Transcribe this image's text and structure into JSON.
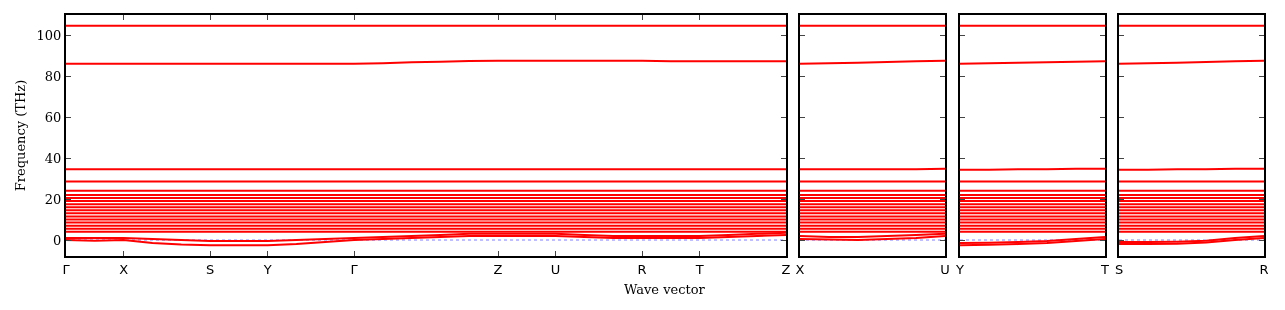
{
  "chart_data": [
    {
      "type": "line",
      "xlabel": "Wave vector",
      "ylabel": "Frequency (THz)",
      "categories": [
        "Γ",
        null,
        "X",
        null,
        null,
        "S",
        null,
        "Y",
        null,
        null,
        "Γ",
        null,
        null,
        null,
        null,
        "Z",
        null,
        "U",
        null,
        null,
        "R",
        null,
        "T",
        null,
        null,
        "Z"
      ],
      "ylim": [
        -7.8,
        109.8
      ],
      "yticks": [
        0,
        20,
        40,
        60,
        80,
        100
      ],
      "grid": false,
      "line_style": "solid",
      "marker": "none",
      "ref_lines": [
        {
          "axis": "y",
          "value": 0,
          "color": "#8080ff",
          "line_style": "dotted"
        }
      ],
      "series": [
        {
          "color": "#ff0000",
          "values": [
            104.5,
            104.5,
            104.5,
            104.5,
            104.5,
            104.5,
            104.5,
            104.5,
            104.5,
            104.5,
            104.5,
            104.5,
            104.5,
            104.5,
            104.5,
            104.5,
            104.5,
            104.5,
            104.5,
            104.5,
            104.5,
            104.5,
            104.5,
            104.5,
            104.5,
            104.5
          ]
        },
        {
          "color": "#ff0000",
          "values": [
            86,
            86,
            86,
            86,
            86,
            86,
            86,
            86,
            86,
            86,
            86,
            86.3,
            86.7,
            87,
            87.3,
            87.5,
            87.5,
            87.5,
            87.5,
            87.5,
            87.5,
            87.2,
            87.2,
            87.2,
            87.2,
            87.2
          ]
        },
        {
          "color": "#ff0000",
          "values": [
            34.5,
            34.5,
            34.5,
            34.5,
            34.5,
            34.5,
            34.5,
            34.5,
            34.5,
            34.5,
            34.5,
            34.5,
            34.5,
            34.5,
            34.5,
            34.5,
            34.5,
            34.5,
            34.5,
            34.5,
            34.5,
            34.5,
            34.5,
            34.5,
            34.5,
            34.5
          ]
        },
        {
          "color": "#ff0000",
          "values": [
            28.5,
            28.5,
            28.5,
            28.5,
            28.5,
            28.5,
            28.5,
            28.5,
            28.5,
            28.5,
            28.5,
            28.5,
            28.5,
            28.5,
            28.5,
            28.5,
            28.5,
            28.5,
            28.5,
            28.5,
            28.5,
            28.5,
            28.5,
            28.5,
            28.5,
            28.5
          ]
        },
        {
          "color": "#ff0000",
          "values": [
            24,
            24,
            24,
            24,
            24,
            24,
            24,
            24,
            24,
            24,
            24,
            24,
            24,
            24,
            24,
            24,
            24,
            24,
            24,
            24,
            24,
            24,
            24,
            24,
            24,
            24
          ]
        },
        {
          "color": "#ff0000",
          "values": [
            22,
            22,
            22,
            22,
            22,
            22,
            22,
            22,
            22,
            22,
            22,
            22,
            22,
            22,
            22,
            22,
            22,
            22,
            22,
            22,
            22,
            22,
            22,
            22,
            22,
            22
          ]
        },
        {
          "color": "#ff0000",
          "values": [
            20.5,
            20.5,
            20.5,
            20.5,
            20.5,
            20.5,
            20.5,
            20.5,
            20.5,
            20.5,
            20.5,
            20.5,
            20.5,
            20.5,
            20.5,
            20.5,
            20.5,
            20.5,
            20.5,
            20.5,
            20.5,
            20.5,
            20.5,
            20.5,
            20.5,
            20.5
          ]
        },
        {
          "color": "#ff0000",
          "values": [
            19,
            19,
            19,
            19,
            19,
            19,
            19,
            19,
            19,
            19,
            19,
            19,
            19,
            19,
            19,
            19,
            19,
            19,
            19,
            19,
            19,
            19,
            19,
            19,
            19,
            19
          ]
        },
        {
          "color": "#ff0000",
          "values": [
            17.5,
            17.5,
            17.5,
            17.5,
            17.5,
            17.5,
            17.5,
            17.5,
            17.5,
            17.5,
            17.5,
            17.5,
            17.5,
            17.5,
            17.5,
            17.5,
            17.5,
            17.5,
            17.5,
            17.5,
            17.5,
            17.5,
            17.5,
            17.5,
            17.5,
            17.5
          ]
        },
        {
          "color": "#ff0000",
          "values": [
            16,
            16,
            16,
            16,
            16,
            16,
            16,
            16,
            16,
            16,
            16,
            16,
            16,
            16,
            16,
            16,
            16,
            16,
            16,
            16,
            16,
            16,
            16,
            16,
            16,
            16
          ]
        },
        {
          "color": "#ff0000",
          "values": [
            14.5,
            14.5,
            14.5,
            14.5,
            14.5,
            14.5,
            14.5,
            14.5,
            14.5,
            14.5,
            14.5,
            14.5,
            14.5,
            14.5,
            14.5,
            14.5,
            14.5,
            14.5,
            14.5,
            14.5,
            14.5,
            14.5,
            14.5,
            14.5,
            14.5,
            14.5
          ]
        },
        {
          "color": "#ff0000",
          "values": [
            13,
            13,
            13,
            13,
            13,
            13,
            13,
            13,
            13,
            13,
            13,
            13,
            13,
            13,
            13,
            13,
            13,
            13,
            13,
            13,
            13,
            13,
            13,
            13,
            13,
            13
          ]
        },
        {
          "color": "#ff0000",
          "values": [
            11.5,
            11.5,
            11.5,
            11.5,
            11.5,
            11.5,
            11.5,
            11.5,
            11.5,
            11.5,
            11.5,
            11.5,
            11.5,
            11.5,
            11.5,
            11.5,
            11.5,
            11.5,
            11.5,
            11.5,
            11.5,
            11.5,
            11.5,
            11.5,
            11.5,
            11.5
          ]
        },
        {
          "color": "#ff0000",
          "values": [
            10,
            10,
            10,
            10,
            10,
            10,
            10,
            10,
            10,
            10,
            10,
            10,
            10,
            10,
            10,
            10,
            10,
            10,
            10,
            10,
            10,
            10,
            10,
            10,
            10,
            10
          ]
        },
        {
          "color": "#ff0000",
          "values": [
            8.5,
            8.5,
            8.5,
            8.5,
            8.5,
            8.5,
            8.5,
            8.5,
            8.5,
            8.5,
            8.5,
            8.5,
            8.5,
            8.5,
            8.5,
            8.5,
            8.5,
            8.5,
            8.5,
            8.5,
            8.5,
            8.5,
            8.5,
            8.5,
            8.5,
            8.5
          ]
        },
        {
          "color": "#ff0000",
          "values": [
            7,
            7,
            7,
            7,
            7,
            7,
            7,
            7,
            7,
            7,
            7,
            7,
            7,
            7,
            7,
            7,
            7,
            7,
            7,
            7,
            7,
            7,
            7,
            7,
            7,
            7
          ]
        },
        {
          "color": "#ff0000",
          "values": [
            5.5,
            5.5,
            5.5,
            5.5,
            5.5,
            5.5,
            5.5,
            5.5,
            5.5,
            5.5,
            5.5,
            5.5,
            5.5,
            5.5,
            5.5,
            5.5,
            5.5,
            5.5,
            5.5,
            5.5,
            5.5,
            5.5,
            5.5,
            5.5,
            5.5,
            5.5
          ]
        },
        {
          "color": "#ff0000",
          "values": [
            4,
            4,
            4,
            4,
            4,
            4,
            4,
            4,
            4,
            4,
            4,
            4,
            4,
            4,
            4,
            4,
            4,
            4,
            4,
            4,
            4,
            4,
            4,
            4,
            4,
            4
          ]
        },
        {
          "color": "#ff0000",
          "values": [
            1,
            1,
            1,
            0.5,
            0,
            -0.5,
            -0.5,
            -0.5,
            0,
            0.5,
            1,
            1.5,
            2,
            2.5,
            3,
            3,
            3,
            3,
            2.5,
            2,
            2,
            2,
            2,
            2.5,
            3,
            3.5
          ]
        },
        {
          "color": "#ff0000",
          "values": [
            0,
            -0.3,
            0,
            -1.5,
            -2.2,
            -2.5,
            -2.5,
            -2.5,
            -2,
            -1,
            0,
            0.5,
            1,
            1.5,
            2,
            2,
            2,
            2,
            1.5,
            1,
            1,
            1,
            1,
            1.5,
            2,
            2.5
          ]
        }
      ]
    },
    {
      "type": "line",
      "categories": [
        "X",
        null,
        null,
        null,
        null,
        "U"
      ],
      "ylim": [
        -7.8,
        109.8
      ],
      "yticks": [
        0,
        20,
        40,
        60,
        80,
        100
      ],
      "tick_labels": "x",
      "grid": false,
      "line_style": "solid",
      "marker": "none",
      "ref_lines": [
        {
          "axis": "y",
          "value": 0,
          "color": "#8080ff",
          "line_style": "dotted"
        }
      ],
      "series": [
        {
          "color": "#ff0000",
          "values": [
            104.5,
            104.5,
            104.5,
            104.5,
            104.5,
            104.5
          ]
        },
        {
          "color": "#ff0000",
          "values": [
            86,
            86.2,
            86.5,
            86.9,
            87.2,
            87.5
          ]
        },
        {
          "color": "#ff0000",
          "values": [
            34.5,
            34.5,
            34.5,
            34.5,
            34.5,
            34.8
          ]
        },
        {
          "color": "#ff0000",
          "values": [
            28.5,
            28.5,
            28.5,
            28.5,
            28.5,
            28.5
          ]
        },
        {
          "color": "#ff0000",
          "values": [
            24,
            24,
            24,
            24,
            24,
            24
          ]
        },
        {
          "color": "#ff0000",
          "values": [
            22,
            22,
            22,
            22,
            22,
            22
          ]
        },
        {
          "color": "#ff0000",
          "values": [
            20.5,
            20.5,
            20.5,
            20.5,
            20.5,
            20.5
          ]
        },
        {
          "color": "#ff0000",
          "values": [
            19,
            19,
            19,
            19,
            19,
            19
          ]
        },
        {
          "color": "#ff0000",
          "values": [
            17.5,
            17.5,
            17.5,
            17.5,
            17.5,
            17.5
          ]
        },
        {
          "color": "#ff0000",
          "values": [
            16,
            16,
            16,
            16,
            16,
            16
          ]
        },
        {
          "color": "#ff0000",
          "values": [
            14.5,
            14.5,
            14.5,
            14.5,
            14.5,
            14.5
          ]
        },
        {
          "color": "#ff0000",
          "values": [
            13,
            13,
            13,
            13,
            13,
            13
          ]
        },
        {
          "color": "#ff0000",
          "values": [
            11.5,
            11.5,
            11.5,
            11.5,
            11.5,
            11.5
          ]
        },
        {
          "color": "#ff0000",
          "values": [
            10,
            10,
            10,
            10,
            10,
            10
          ]
        },
        {
          "color": "#ff0000",
          "values": [
            8.5,
            8.5,
            8.5,
            8.5,
            8.5,
            8.5
          ]
        },
        {
          "color": "#ff0000",
          "values": [
            7,
            7,
            7,
            7,
            7,
            7
          ]
        },
        {
          "color": "#ff0000",
          "values": [
            5.5,
            5.5,
            5.5,
            5.5,
            5.5,
            5.5
          ]
        },
        {
          "color": "#ff0000",
          "values": [
            4,
            4,
            4,
            4,
            4,
            4
          ]
        },
        {
          "color": "#ff0000",
          "values": [
            2,
            1.5,
            1.5,
            2,
            2.5,
            3
          ]
        },
        {
          "color": "#ff0000",
          "values": [
            0.5,
            0.2,
            0,
            0.5,
            1,
            2
          ]
        }
      ]
    },
    {
      "type": "line",
      "categories": [
        "Y",
        null,
        null,
        null,
        null,
        "T"
      ],
      "ylim": [
        -7.8,
        109.8
      ],
      "yticks": [
        0,
        20,
        40,
        60,
        80,
        100
      ],
      "tick_labels": "x",
      "grid": false,
      "line_style": "solid",
      "marker": "none",
      "ref_lines": [
        {
          "axis": "y",
          "value": 0,
          "color": "#8080ff",
          "line_style": "dotted"
        }
      ],
      "series": [
        {
          "color": "#ff0000",
          "values": [
            104.5,
            104.5,
            104.5,
            104.5,
            104.5,
            104.5
          ]
        },
        {
          "color": "#ff0000",
          "values": [
            86,
            86.2,
            86.5,
            86.8,
            87,
            87.2
          ]
        },
        {
          "color": "#ff0000",
          "values": [
            34.3,
            34.3,
            34.5,
            34.5,
            34.8,
            34.8
          ]
        },
        {
          "color": "#ff0000",
          "values": [
            28.5,
            28.5,
            28.5,
            28.5,
            28.5,
            28.5
          ]
        },
        {
          "color": "#ff0000",
          "values": [
            24,
            24,
            24,
            24,
            24,
            24
          ]
        },
        {
          "color": "#ff0000",
          "values": [
            22,
            22,
            22,
            22,
            22,
            22
          ]
        },
        {
          "color": "#ff0000",
          "values": [
            20.5,
            20.5,
            20.5,
            20.5,
            20.5,
            20.5
          ]
        },
        {
          "color": "#ff0000",
          "values": [
            19,
            19,
            19,
            19,
            19,
            19
          ]
        },
        {
          "color": "#ff0000",
          "values": [
            17.5,
            17.5,
            17.5,
            17.5,
            17.5,
            17.5
          ]
        },
        {
          "color": "#ff0000",
          "values": [
            16,
            16,
            16,
            16,
            16,
            16
          ]
        },
        {
          "color": "#ff0000",
          "values": [
            14.5,
            14.5,
            14.5,
            14.5,
            14.5,
            14.5
          ]
        },
        {
          "color": "#ff0000",
          "values": [
            13,
            13,
            13,
            13,
            13,
            13
          ]
        },
        {
          "color": "#ff0000",
          "values": [
            11.5,
            11.5,
            11.5,
            11.5,
            11.5,
            11.5
          ]
        },
        {
          "color": "#ff0000",
          "values": [
            10,
            10,
            10,
            10,
            10,
            10
          ]
        },
        {
          "color": "#ff0000",
          "values": [
            8.5,
            8.5,
            8.5,
            8.5,
            8.5,
            8.5
          ]
        },
        {
          "color": "#ff0000",
          "values": [
            7,
            7,
            7,
            7,
            7,
            7
          ]
        },
        {
          "color": "#ff0000",
          "values": [
            5.5,
            5.5,
            5.5,
            5.5,
            5.5,
            5.5
          ]
        },
        {
          "color": "#ff0000",
          "values": [
            4,
            4,
            4,
            4,
            4,
            4
          ]
        },
        {
          "color": "#ff0000",
          "values": [
            -1.5,
            -1.3,
            -1,
            -0.5,
            0.5,
            1.5
          ]
        },
        {
          "color": "#ff0000",
          "values": [
            -2.5,
            -2.3,
            -2,
            -1.5,
            -0.5,
            0.5
          ]
        }
      ]
    },
    {
      "type": "line",
      "categories": [
        "S",
        null,
        null,
        null,
        null,
        "R"
      ],
      "ylim": [
        -7.8,
        109.8
      ],
      "yticks": [
        0,
        20,
        40,
        60,
        80,
        100
      ],
      "tick_labels": "x",
      "grid": false,
      "line_style": "solid",
      "marker": "none",
      "ref_lines": [
        {
          "axis": "y",
          "value": 0,
          "color": "#8080ff",
          "line_style": "dotted"
        }
      ],
      "series": [
        {
          "color": "#ff0000",
          "values": [
            104.5,
            104.5,
            104.5,
            104.5,
            104.5,
            104.5
          ]
        },
        {
          "color": "#ff0000",
          "values": [
            86,
            86.2,
            86.5,
            86.9,
            87.2,
            87.5
          ]
        },
        {
          "color": "#ff0000",
          "values": [
            34.3,
            34.3,
            34.5,
            34.5,
            34.8,
            34.8
          ]
        },
        {
          "color": "#ff0000",
          "values": [
            28.5,
            28.5,
            28.5,
            28.5,
            28.5,
            28.5
          ]
        },
        {
          "color": "#ff0000",
          "values": [
            24,
            24,
            24,
            24,
            24,
            24
          ]
        },
        {
          "color": "#ff0000",
          "values": [
            22,
            22,
            22,
            22,
            22,
            22
          ]
        },
        {
          "color": "#ff0000",
          "values": [
            20.5,
            20.5,
            20.5,
            20.5,
            20.5,
            20.5
          ]
        },
        {
          "color": "#ff0000",
          "values": [
            19,
            19,
            19,
            19,
            19,
            19
          ]
        },
        {
          "color": "#ff0000",
          "values": [
            17.5,
            17.5,
            17.5,
            17.5,
            17.5,
            17.5
          ]
        },
        {
          "color": "#ff0000",
          "values": [
            16,
            16,
            16,
            16,
            16,
            16
          ]
        },
        {
          "color": "#ff0000",
          "values": [
            14.5,
            14.5,
            14.5,
            14.5,
            14.5,
            14.5
          ]
        },
        {
          "color": "#ff0000",
          "values": [
            13,
            13,
            13,
            13,
            13,
            13
          ]
        },
        {
          "color": "#ff0000",
          "values": [
            11.5,
            11.5,
            11.5,
            11.5,
            11.5,
            11.5
          ]
        },
        {
          "color": "#ff0000",
          "values": [
            10,
            10,
            10,
            10,
            10,
            10
          ]
        },
        {
          "color": "#ff0000",
          "values": [
            8.5,
            8.5,
            8.5,
            8.5,
            8.5,
            8.5
          ]
        },
        {
          "color": "#ff0000",
          "values": [
            7,
            7,
            7,
            7,
            7,
            7
          ]
        },
        {
          "color": "#ff0000",
          "values": [
            5.5,
            5.5,
            5.5,
            5.5,
            5.5,
            5.5
          ]
        },
        {
          "color": "#ff0000",
          "values": [
            4,
            4,
            4,
            4,
            4,
            4
          ]
        },
        {
          "color": "#ff0000",
          "values": [
            -1,
            -1,
            -0.8,
            -0.3,
            1,
            2
          ]
        },
        {
          "color": "#ff0000",
          "values": [
            -2,
            -2,
            -1.8,
            -1.2,
            0,
            1
          ]
        }
      ]
    }
  ]
}
